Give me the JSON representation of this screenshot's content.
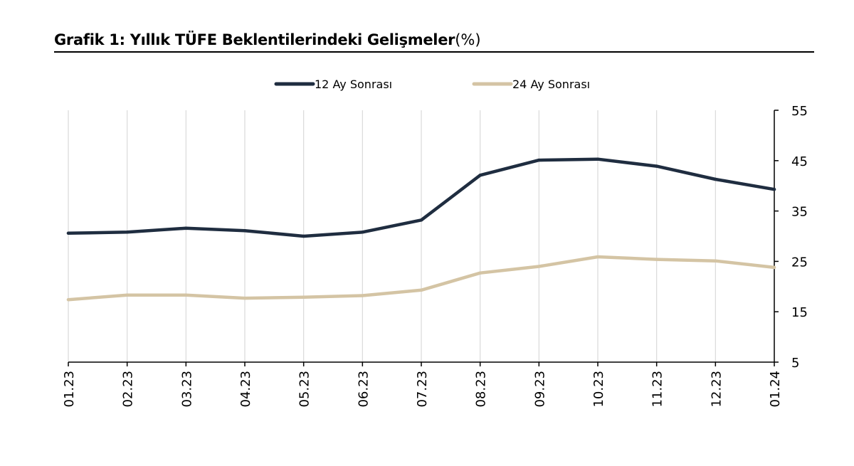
{
  "title": {
    "main": "Grafik 1: Yıllık TÜFE Beklentilerindeki Gelişmeler",
    "unit": "(%)"
  },
  "chart_data": {
    "type": "line",
    "title": "Grafik 1: Yıllık TÜFE Beklentilerindeki Gelişmeler(%)",
    "xlabel": "",
    "ylabel": "",
    "categories": [
      "01.23",
      "02.23",
      "03.23",
      "04.23",
      "05.23",
      "06.23",
      "07.23",
      "08.23",
      "09.23",
      "10.23",
      "11.23",
      "12.23",
      "01.24"
    ],
    "ylim": [
      5,
      55
    ],
    "yticks": [
      5,
      15,
      25,
      35,
      45,
      55
    ],
    "y_axis_side": "right",
    "grid": "vertical",
    "legend_position": "top-center",
    "series": [
      {
        "name": "12 Ay Sonrası",
        "color": "#1f2d40",
        "values": [
          30.6,
          30.8,
          31.6,
          31.1,
          30.0,
          30.8,
          33.2,
          42.1,
          45.1,
          45.3,
          43.9,
          41.3,
          39.3
        ]
      },
      {
        "name": "24 Ay Sonrası",
        "color": "#d4c4a4",
        "values": [
          17.4,
          18.3,
          18.3,
          17.7,
          17.9,
          18.2,
          19.3,
          22.7,
          24.0,
          25.9,
          25.4,
          25.1,
          23.8
        ]
      }
    ]
  }
}
